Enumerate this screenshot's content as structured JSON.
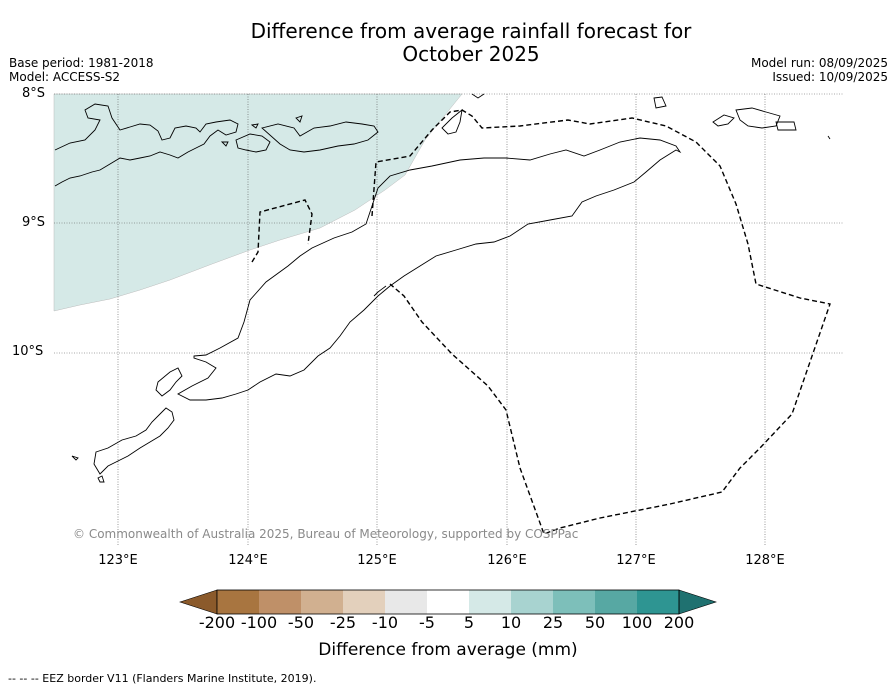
{
  "title": {
    "line1": "Difference from average rainfall forecast for",
    "line2": "October 2025"
  },
  "meta": {
    "base_period": "Base period: 1981-2018",
    "model": "Model: ACCESS-S2",
    "model_run": "Model run: 08/09/2025",
    "issued": "Issued: 10/09/2025"
  },
  "map": {
    "latitude_labels": [
      "8°S",
      "9°S",
      "10°S"
    ],
    "longitude_labels": [
      "123°E",
      "124°E",
      "125°E",
      "126°E",
      "127°E",
      "128°E"
    ],
    "anomaly_region_category": "5 to 10",
    "colors": {
      "anomaly_fill": "#d5e9e7",
      "eez_border": "#000000",
      "coastline": "#000000"
    },
    "copyright": "© Commonwealth of Australia 2025, Bureau of Meteorology, supported by COSPPac"
  },
  "colorbar": {
    "title": "Difference from average (mm)",
    "labels": [
      "-200",
      "-100",
      "-50",
      "-25",
      "-10",
      "-5",
      "5",
      "10",
      "25",
      "50",
      "100",
      "200"
    ],
    "colors": [
      "#8b5a2b",
      "#a87540",
      "#bf9068",
      "#d1b090",
      "#e3d0bc",
      "#e8e8e8",
      "#ffffff",
      "#d5e9e7",
      "#a8d3d0",
      "#7dbfba",
      "#57a8a3",
      "#2e9592",
      "#1f7170"
    ]
  },
  "footer": {
    "eez_note": "--  --  -- EEZ border V11 (Flanders Marine Institute, 2019)."
  }
}
